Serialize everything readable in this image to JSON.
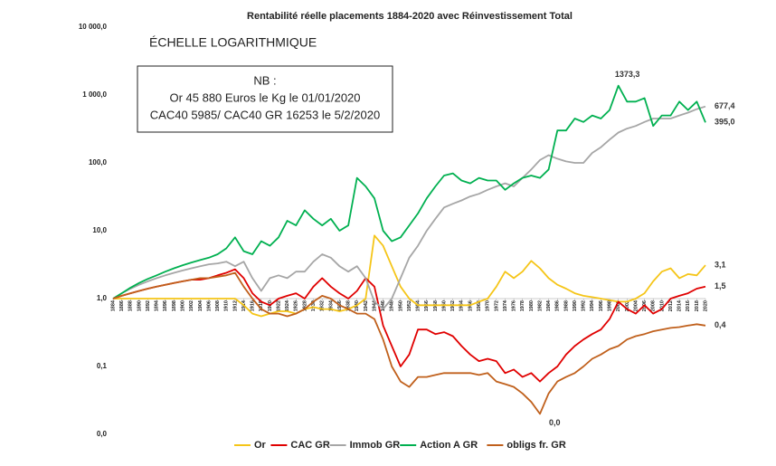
{
  "chart_data": {
    "type": "line",
    "title": "Rentabilité réelle placements 1884-2020 avec Réinvestissement Total",
    "subtitle": "ÉCHELLE LOGARITHMIQUE",
    "note": [
      "NB :",
      "Or 45 880 Euros le Kg le 01/01/2020",
      "CAC40 5985/ CAC40 GR 16253 le 5/2/2020"
    ],
    "x": [
      1884,
      1886,
      1888,
      1890,
      1892,
      1894,
      1896,
      1898,
      1900,
      1902,
      1904,
      1906,
      1908,
      1910,
      1912,
      1914,
      1916,
      1918,
      1920,
      1922,
      1924,
      1926,
      1928,
      1930,
      1932,
      1934,
      1936,
      1938,
      1940,
      1942,
      1944,
      1946,
      1948,
      1950,
      1952,
      1954,
      1956,
      1958,
      1960,
      1962,
      1964,
      1966,
      1968,
      1970,
      1972,
      1974,
      1976,
      1978,
      1980,
      1982,
      1984,
      1986,
      1988,
      1990,
      1992,
      1994,
      1996,
      1998,
      2000,
      2002,
      2004,
      2006,
      2008,
      2010,
      2012,
      2014,
      2016,
      2018,
      2020
    ],
    "xlim": [
      1884,
      2020
    ],
    "log_scale": true,
    "ylim": [
      0.01,
      10000
    ],
    "yticks": [
      {
        "value": 0.01,
        "label": "0,0"
      },
      {
        "value": 0.1,
        "label": "0,1"
      },
      {
        "value": 1,
        "label": "1,0"
      },
      {
        "value": 10,
        "label": "10,0"
      },
      {
        "value": 100,
        "label": "100,0"
      },
      {
        "value": 1000,
        "label": "1 000,0"
      },
      {
        "value": 10000,
        "label": "10 000,0"
      }
    ],
    "legend": "bottom",
    "series": [
      {
        "name": "Or",
        "color": "#f5c518",
        "values": [
          1,
          1,
          1,
          1,
          1,
          1,
          1,
          1,
          1,
          1,
          1,
          1,
          1,
          1,
          1.0,
          0.8,
          0.6,
          0.55,
          0.6,
          0.65,
          0.65,
          0.6,
          0.7,
          0.75,
          0.7,
          0.7,
          0.65,
          0.7,
          0.8,
          1.0,
          8.5,
          6,
          3,
          1.5,
          1.0,
          0.8,
          0.8,
          0.8,
          0.8,
          0.8,
          0.8,
          0.8,
          0.9,
          1.0,
          1.5,
          2.5,
          2.0,
          2.5,
          3.6,
          2.8,
          2.0,
          1.6,
          1.4,
          1.2,
          1.1,
          1.05,
          1.0,
          0.95,
          0.9,
          0.9,
          1.0,
          1.2,
          1.8,
          2.5,
          2.8,
          2.0,
          2.3,
          2.2,
          3.1
        ]
      },
      {
        "name": "CAC GR",
        "color": "#e00000",
        "values": [
          1,
          1.1,
          1.2,
          1.3,
          1.4,
          1.5,
          1.6,
          1.7,
          1.8,
          1.9,
          1.9,
          2.0,
          2.2,
          2.4,
          2.7,
          2.0,
          1.2,
          0.9,
          0.8,
          1.0,
          1.1,
          1.2,
          1.0,
          1.5,
          2.0,
          1.5,
          1.2,
          1.0,
          1.3,
          2.0,
          1.5,
          0.4,
          0.2,
          0.1,
          0.15,
          0.35,
          0.35,
          0.3,
          0.32,
          0.28,
          0.2,
          0.15,
          0.12,
          0.13,
          0.12,
          0.08,
          0.09,
          0.07,
          0.08,
          0.06,
          0.08,
          0.1,
          0.15,
          0.2,
          0.25,
          0.3,
          0.35,
          0.5,
          0.9,
          0.7,
          0.6,
          0.8,
          0.6,
          0.7,
          1.0,
          1.1,
          1.2,
          1.4,
          1.5
        ]
      },
      {
        "name": "Immob GR",
        "color": "#a6a6a6",
        "values": [
          1,
          1.2,
          1.4,
          1.6,
          1.8,
          2.0,
          2.2,
          2.4,
          2.6,
          2.8,
          3.0,
          3.2,
          3.3,
          3.5,
          3.0,
          3.5,
          2.0,
          1.3,
          2.0,
          2.2,
          2.0,
          2.5,
          2.5,
          3.5,
          4.5,
          4.0,
          3.0,
          2.5,
          3.0,
          2.0,
          0.9,
          0.7,
          1.0,
          2.0,
          4,
          6,
          10,
          15,
          22,
          25,
          28,
          32,
          35,
          40,
          45,
          50,
          45,
          60,
          80,
          110,
          130,
          115,
          105,
          100,
          100,
          140,
          170,
          220,
          280,
          320,
          350,
          400,
          450,
          450,
          450,
          500,
          550,
          620,
          677.4
        ]
      },
      {
        "name": "Action A GR",
        "color": "#00b050",
        "values": [
          1,
          1.2,
          1.45,
          1.7,
          1.95,
          2.2,
          2.5,
          2.8,
          3.1,
          3.4,
          3.7,
          4.0,
          4.5,
          5.5,
          8,
          5,
          4.5,
          7,
          6,
          8,
          14,
          12,
          20,
          15,
          12,
          15,
          10,
          12,
          60,
          45,
          30,
          10,
          7,
          8,
          12,
          18,
          30,
          45,
          65,
          70,
          55,
          50,
          60,
          55,
          55,
          40,
          50,
          60,
          65,
          60,
          80,
          300,
          300,
          450,
          400,
          500,
          450,
          600,
          1373.3,
          800,
          800,
          900,
          350,
          500,
          500,
          800,
          600,
          800,
          395
        ]
      },
      {
        "name": "obligs fr. GR",
        "color": "#c0601c",
        "values": [
          1,
          1.1,
          1.2,
          1.3,
          1.4,
          1.5,
          1.6,
          1.7,
          1.8,
          1.9,
          2.0,
          2.0,
          2.1,
          2.2,
          2.4,
          1.5,
          1.0,
          0.7,
          0.6,
          0.6,
          0.55,
          0.6,
          0.7,
          0.9,
          1.1,
          1.0,
          0.8,
          0.7,
          0.6,
          0.6,
          0.5,
          0.25,
          0.1,
          0.06,
          0.05,
          0.07,
          0.07,
          0.075,
          0.08,
          0.08,
          0.08,
          0.08,
          0.075,
          0.08,
          0.06,
          0.055,
          0.05,
          0.04,
          0.03,
          0.02,
          0.04,
          0.06,
          0.07,
          0.08,
          0.1,
          0.13,
          0.15,
          0.18,
          0.2,
          0.25,
          0.28,
          0.3,
          0.33,
          0.35,
          0.37,
          0.38,
          0.4,
          0.42,
          0.4
        ]
      }
    ],
    "annotations": [
      {
        "text": "1373,3",
        "x": 2000,
        "y": 1373.3
      },
      {
        "text": "677,4",
        "x": 2020,
        "y": 677.4
      },
      {
        "text": "395,0",
        "x": 2020,
        "y": 395
      },
      {
        "text": "3,1",
        "x": 2020,
        "y": 3.1
      },
      {
        "text": "1,5",
        "x": 2020,
        "y": 1.5
      },
      {
        "text": "0,4",
        "x": 2020,
        "y": 0.4
      },
      {
        "text": "0,0",
        "x": 1982,
        "y": 0.02
      }
    ]
  }
}
